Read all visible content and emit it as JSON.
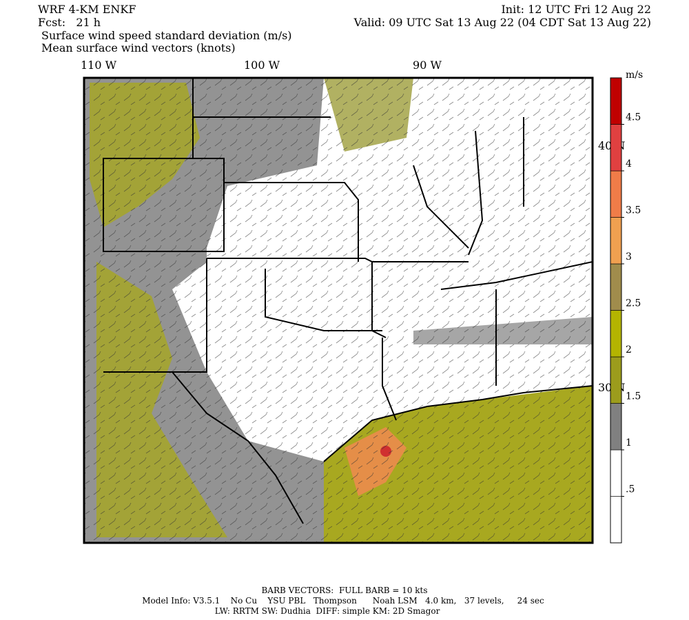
{
  "header": {
    "model": "WRF 4-KM ENKF",
    "forecast": "Fcst:   21 h",
    "init": "Init: 12 UTC Fri 12 Aug 22",
    "valid": "Valid: 09 UTC Sat 13 Aug 22 (04 CDT Sat 13 Aug 22)",
    "field": "Surface wind speed standard deviation (m/s)",
    "vectors": "Mean surface wind vectors (knots)"
  },
  "map": {
    "lon_labels": [
      "110 W",
      "100 W",
      "90 W"
    ],
    "lat_labels": [
      "40 N",
      "30 N"
    ]
  },
  "colorbar": {
    "unit": "m/s",
    "range": [
      0,
      5
    ],
    "ticks": [
      {
        "value": 0.5,
        "label": ".5"
      },
      1,
      1.5,
      2,
      2.5,
      3,
      3.5,
      4,
      4.5
    ],
    "colors": [
      "#ffffff",
      "#ffffff",
      "#808080",
      "#9c9c1c",
      "#b4b400",
      "#a08c4c",
      "#f0a050",
      "#f07c48",
      "#e04040",
      "#c00000"
    ]
  },
  "footer": {
    "barbs": "BARB VECTORS:  FULL BARB = 10 kts",
    "model_info": "Model Info: V3.5.1    No Cu    YSU PBL   Thompson      Noah LSM   4.0 km,   37 levels,     24 sec",
    "physics": "LW: RRTM SW: Dudhia  DIFF: simple KM: 2D Smagor"
  }
}
